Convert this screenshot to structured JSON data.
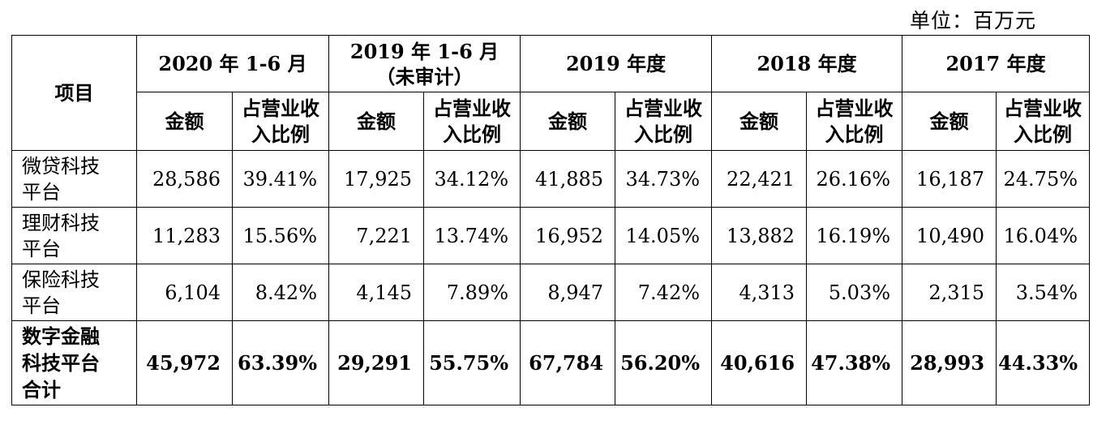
{
  "unit_label": "单位：百万元",
  "header": {
    "item": "项目",
    "periods": [
      {
        "line1": "2020 年 1-6 月",
        "line2": ""
      },
      {
        "line1": "2019 年 1-6 月",
        "line2": "（未审计）"
      },
      {
        "line1": "2019 年度",
        "line2": ""
      },
      {
        "line1": "2018 年度",
        "line2": ""
      },
      {
        "line1": "2017 年度",
        "line2": ""
      }
    ],
    "amount": "金额",
    "ratio_line1": "占营业收",
    "ratio_line2": "入比例"
  },
  "rows": [
    {
      "label_line1": "微贷科技",
      "label_line2": "平台",
      "label_line3": "",
      "cells": [
        "28,586",
        "39.41%",
        "17,925",
        "34.12%",
        "41,885",
        "34.73%",
        "22,421",
        "26.16%",
        "16,187",
        "24.75%"
      ]
    },
    {
      "label_line1": "理财科技",
      "label_line2": "平台",
      "label_line3": "",
      "cells": [
        "11,283",
        "15.56%",
        "7,221",
        "13.74%",
        "16,952",
        "14.05%",
        "13,882",
        "16.19%",
        "10,490",
        "16.04%"
      ]
    },
    {
      "label_line1": "保险科技",
      "label_line2": "平台",
      "label_line3": "",
      "cells": [
        "6,104",
        "8.42%",
        "4,145",
        "7.89%",
        "8,947",
        "7.42%",
        "4,313",
        "5.03%",
        "2,315",
        "3.54%"
      ]
    },
    {
      "label_line1": "数字金融",
      "label_line2": "科技平台",
      "label_line3": "合计",
      "cells": [
        "45,972",
        "63.39%",
        "29,291",
        "55.75%",
        "67,784",
        "56.20%",
        "40,616",
        "47.38%",
        "28,993",
        "44.33%"
      ]
    }
  ]
}
